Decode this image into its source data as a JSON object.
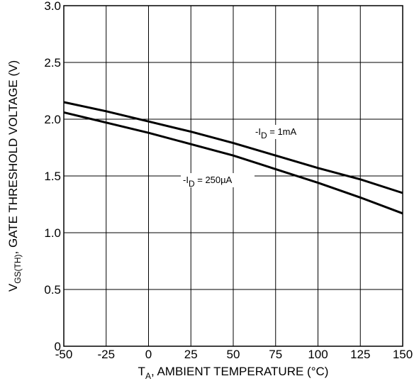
{
  "chart_data": {
    "type": "line",
    "xlabel": {
      "main": "T",
      "sub": "A",
      "rest": ", AMBIENT TEMPERATURE (°C)"
    },
    "ylabel": {
      "main": "V",
      "sub": "GS(TH)",
      "rest": ", GATE THRESHOLD VOLTAGE (V)"
    },
    "xlim": [
      -50,
      150
    ],
    "ylim": [
      0,
      3.0
    ],
    "xticks": [
      -50,
      -25,
      0,
      25,
      50,
      75,
      100,
      125,
      150
    ],
    "xtick_labels": [
      "-50",
      "-25",
      "0",
      "25",
      "50",
      "75",
      "100",
      "125",
      "150"
    ],
    "yticks": [
      0,
      0.5,
      1.0,
      1.5,
      2.0,
      2.5,
      3.0
    ],
    "ytick_labels": [
      "0",
      "0.5",
      "1.0",
      "1.5",
      "2.0",
      "2.5",
      "3.0"
    ],
    "grid": true,
    "series": [
      {
        "name": "-ID = 1mA",
        "label": {
          "pre": "-I",
          "sub": "D",
          "post": " = 1mA"
        },
        "x": [
          -50,
          -25,
          0,
          25,
          50,
          75,
          100,
          125,
          150
        ],
        "y": [
          2.15,
          2.07,
          1.98,
          1.89,
          1.79,
          1.68,
          1.57,
          1.47,
          1.35
        ]
      },
      {
        "name": "-ID = 250µA",
        "label": {
          "pre": "-I",
          "sub": "D",
          "post": " = 250µA"
        },
        "x": [
          -50,
          -25,
          0,
          25,
          50,
          75,
          100,
          125,
          150
        ],
        "y": [
          2.06,
          1.97,
          1.88,
          1.78,
          1.68,
          1.56,
          1.44,
          1.31,
          1.17
        ]
      }
    ]
  }
}
